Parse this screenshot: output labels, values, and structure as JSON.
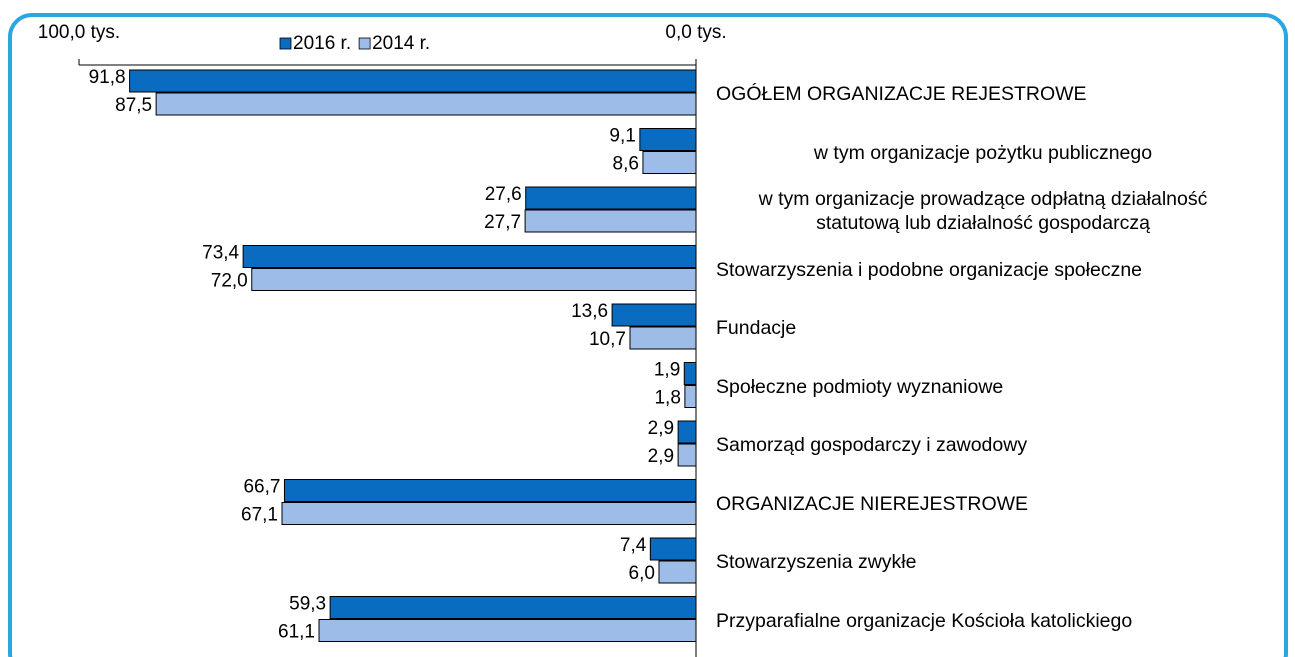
{
  "chart_data": {
    "type": "barh",
    "categories": [
      "OGÓŁEM ORGANIZACJE REJESTROWE",
      "w tym organizacje pożytku publicznego",
      "w tym organizacje prowadzące odpłatną działalność statutową lub działalność gospodarczą",
      "Stowarzyszenia i podobne organizacje społeczne",
      "Fundacje",
      "Społeczne podmioty wyznaniowe",
      "Samorząd gospodarczy i zawodowy",
      "ORGANIZACJE NIEREJESTROWE",
      "Stowarzyszenia zwykłe",
      "Przyparafialne organizacje Kościoła katolickiego"
    ],
    "series": [
      {
        "name": "2016 r.",
        "color": "#0a6cc0",
        "values": [
          91.8,
          9.1,
          27.6,
          73.4,
          13.6,
          1.9,
          2.9,
          66.7,
          7.4,
          59.3
        ],
        "value_labels": [
          "91,8",
          "9,1",
          "27,6",
          "73,4",
          "13,6",
          "1,9",
          "2,9",
          "66,7",
          "7,4",
          "59,3"
        ]
      },
      {
        "name": "2014 r.",
        "color": "#9dbde8",
        "values": [
          87.5,
          8.6,
          27.7,
          72.0,
          10.7,
          1.8,
          2.9,
          67.1,
          6.0,
          61.1
        ],
        "value_labels": [
          "87,5",
          "8,6",
          "27,7",
          "72,0",
          "10,7",
          "1,8",
          "2,9",
          "67,1",
          "6,0",
          "61,1"
        ]
      }
    ],
    "xlim": [
      0,
      100
    ],
    "x_reversed": true,
    "xticks": [
      {
        "value": 100,
        "label": "100,0 tys."
      },
      {
        "value": 0,
        "label": "0,0 tys."
      }
    ],
    "legend": "top"
  }
}
